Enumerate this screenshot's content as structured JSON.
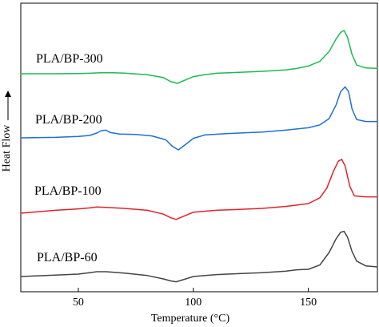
{
  "chart_data": {
    "type": "line",
    "title": "",
    "xlabel": "Temperature (°C)",
    "ylabel": "Heat Flow",
    "xlim": [
      25,
      180
    ],
    "x_ticks": [
      50,
      100,
      150
    ],
    "y_ticks_shown": false,
    "grid": false,
    "legend": "labels placed beside each curve",
    "series": [
      {
        "name": "PLA/BP-300",
        "color": "#1db954",
        "points": [
          [
            25,
            0.0
          ],
          [
            40,
            0.0
          ],
          [
            50,
            0.02
          ],
          [
            55,
            0.05
          ],
          [
            60,
            0.1
          ],
          [
            65,
            0.1
          ],
          [
            70,
            0.06
          ],
          [
            80,
            -0.1
          ],
          [
            87,
            -0.4
          ],
          [
            90,
            -0.8
          ],
          [
            93,
            -1.0
          ],
          [
            96,
            -0.7
          ],
          [
            100,
            -0.3
          ],
          [
            105,
            -0.1
          ],
          [
            110,
            0.05
          ],
          [
            120,
            0.15
          ],
          [
            130,
            0.25
          ],
          [
            140,
            0.4
          ],
          [
            145,
            0.55
          ],
          [
            150,
            0.8
          ],
          [
            155,
            1.3
          ],
          [
            159,
            2.3
          ],
          [
            162,
            3.6
          ],
          [
            164,
            4.3
          ],
          [
            165.5,
            4.5
          ],
          [
            167,
            3.8
          ],
          [
            169,
            2.0
          ],
          [
            171,
            0.9
          ],
          [
            175,
            0.6
          ],
          [
            180,
            0.55
          ]
        ]
      },
      {
        "name": "PLA/BP-200",
        "color": "#1f6fd6",
        "points": [
          [
            25,
            0.0
          ],
          [
            40,
            0.05
          ],
          [
            50,
            0.15
          ],
          [
            55,
            0.25
          ],
          [
            58,
            0.5
          ],
          [
            60,
            0.75
          ],
          [
            62,
            0.8
          ],
          [
            64,
            0.55
          ],
          [
            68,
            0.4
          ],
          [
            75,
            0.35
          ],
          [
            82,
            0.2
          ],
          [
            88,
            -0.2
          ],
          [
            91,
            -0.9
          ],
          [
            93.5,
            -1.25
          ],
          [
            96,
            -0.8
          ],
          [
            100,
            -0.05
          ],
          [
            105,
            0.3
          ],
          [
            115,
            0.45
          ],
          [
            130,
            0.6
          ],
          [
            140,
            0.8
          ],
          [
            150,
            1.05
          ],
          [
            155,
            1.35
          ],
          [
            159,
            2.0
          ],
          [
            162,
            3.4
          ],
          [
            164,
            4.8
          ],
          [
            166,
            5.3
          ],
          [
            167.5,
            4.8
          ],
          [
            169,
            3.0
          ],
          [
            171,
            1.9
          ],
          [
            175,
            1.7
          ],
          [
            180,
            1.7
          ]
        ]
      },
      {
        "name": "PLA/BP-100",
        "color": "#e0232e",
        "points": [
          [
            25,
            0.0
          ],
          [
            40,
            0.3
          ],
          [
            50,
            0.45
          ],
          [
            55,
            0.55
          ],
          [
            58,
            0.65
          ],
          [
            62,
            0.6
          ],
          [
            70,
            0.5
          ],
          [
            80,
            0.3
          ],
          [
            87,
            -0.1
          ],
          [
            90,
            -0.45
          ],
          [
            92.5,
            -0.65
          ],
          [
            96,
            -0.3
          ],
          [
            100,
            0.1
          ],
          [
            110,
            0.3
          ],
          [
            120,
            0.4
          ],
          [
            130,
            0.5
          ],
          [
            140,
            0.7
          ],
          [
            150,
            1.0
          ],
          [
            155,
            1.6
          ],
          [
            158,
            2.6
          ],
          [
            161,
            4.4
          ],
          [
            163,
            5.4
          ],
          [
            164.5,
            5.6
          ],
          [
            166,
            4.9
          ],
          [
            168,
            2.8
          ],
          [
            170,
            1.8
          ],
          [
            175,
            1.7
          ],
          [
            180,
            1.7
          ]
        ]
      },
      {
        "name": "PLA/BP-60",
        "color": "#444444",
        "points": [
          [
            25,
            0.0
          ],
          [
            40,
            0.15
          ],
          [
            50,
            0.25
          ],
          [
            55,
            0.4
          ],
          [
            58,
            0.5
          ],
          [
            62,
            0.5
          ],
          [
            70,
            0.35
          ],
          [
            80,
            0.1
          ],
          [
            87,
            -0.25
          ],
          [
            90,
            -0.45
          ],
          [
            92.5,
            -0.55
          ],
          [
            96,
            -0.3
          ],
          [
            100,
            0.0
          ],
          [
            110,
            0.2
          ],
          [
            120,
            0.3
          ],
          [
            130,
            0.4
          ],
          [
            140,
            0.55
          ],
          [
            145,
            0.7
          ],
          [
            150,
            0.75
          ],
          [
            155,
            1.2
          ],
          [
            159,
            2.5
          ],
          [
            162,
            3.9
          ],
          [
            164,
            4.6
          ],
          [
            165.5,
            4.7
          ],
          [
            167,
            4.1
          ],
          [
            169,
            2.6
          ],
          [
            171,
            1.6
          ],
          [
            175,
            1.1
          ],
          [
            180,
            1.0
          ]
        ]
      }
    ]
  }
}
